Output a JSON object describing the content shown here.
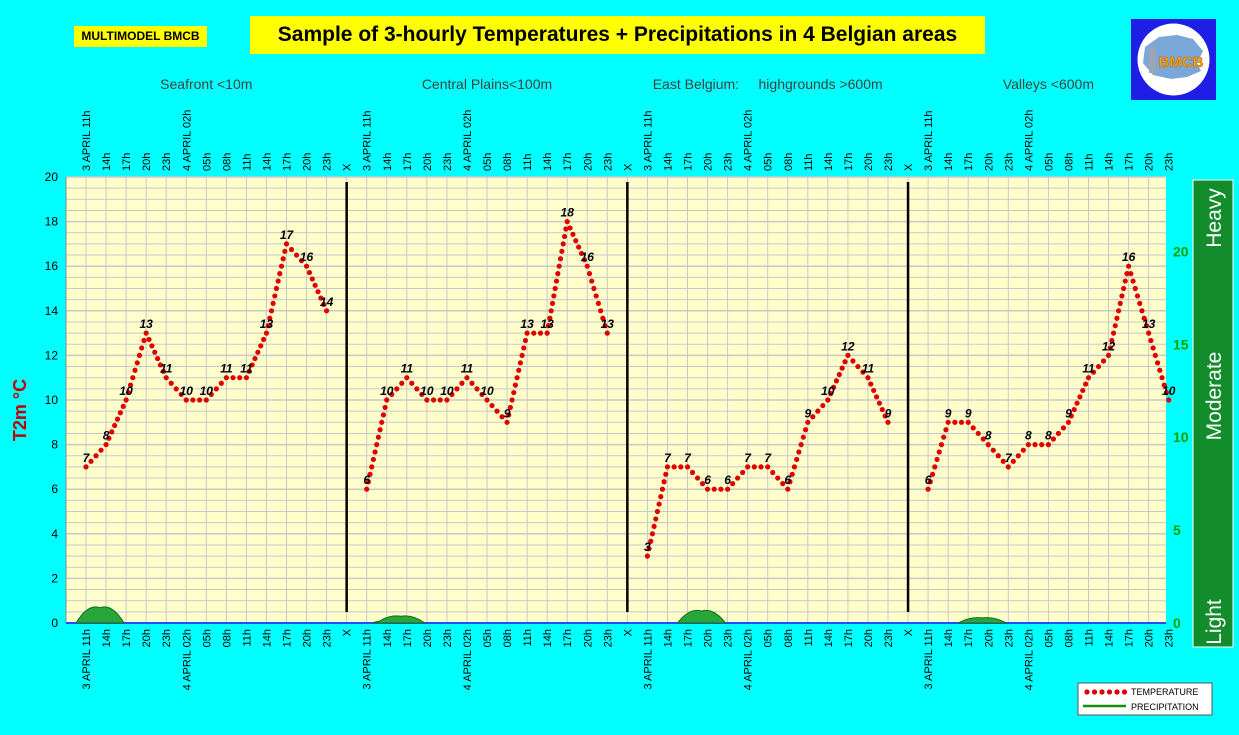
{
  "header": {
    "brand": "MULTIMODEL BMCB",
    "title": "Sample of 3-hourly Temperatures + Precipitations in 4 Belgian areas",
    "logo_text": "BMCB"
  },
  "colors": {
    "background": "#00FFFF",
    "plot_area": "#FFFFCC",
    "temperature": "#E00000",
    "precipitation": "#109010",
    "precip_band": "#138D2C",
    "title_box": "#FFFF00"
  },
  "chart_data": {
    "type": "line",
    "ylabel": "T2m °C",
    "ylim": [
      0,
      20
    ],
    "y_ticks": [
      "0",
      "2",
      "4",
      "6",
      "8",
      "10",
      "12",
      "14",
      "16",
      "18",
      "20"
    ],
    "y2lim": [
      0,
      24
    ],
    "y2_ticks": [
      "0",
      "5",
      "10",
      "15",
      "20"
    ],
    "precip_bands": [
      "Light",
      "Moderate",
      "Heavy"
    ],
    "areas": [
      "Seafront <10m",
      "Central Plains<100m",
      "East Belgium:     highgrounds >600m",
      "Valleys <600m"
    ],
    "x_labels": [
      "3 APRIL 11h",
      "14h",
      "17h",
      "20h",
      "23h",
      "4 APRIL 02h",
      "05h",
      "08h",
      "11h",
      "14h",
      "17h",
      "20h",
      "23h"
    ],
    "separator_label": "X",
    "series": [
      {
        "name": "TEMPERATURE",
        "values": [
          [
            7,
            8,
            10,
            13,
            11,
            10,
            10,
            11,
            11,
            13,
            17,
            16,
            14
          ],
          [
            6,
            10,
            11,
            10,
            10,
            11,
            10,
            9,
            13,
            13,
            18,
            16,
            13
          ],
          [
            3,
            7,
            7,
            6,
            6,
            7,
            7,
            6,
            9,
            10,
            12,
            11,
            9
          ],
          [
            6,
            9,
            9,
            8,
            7,
            8,
            8,
            9,
            11,
            12,
            16,
            13,
            10
          ]
        ]
      },
      {
        "name": "PRECIPITATION",
        "values": [
          [
            0,
            0.9,
            0,
            0,
            0,
            0,
            0,
            0,
            0,
            0,
            0,
            0,
            0
          ],
          [
            0,
            0.1,
            0.4,
            0,
            0,
            0,
            0,
            0,
            0,
            0,
            0,
            0,
            0
          ],
          [
            0,
            0,
            0,
            0.7,
            0,
            0,
            0,
            0,
            0,
            0,
            0,
            0,
            0
          ],
          [
            0,
            0,
            0,
            0.3,
            0,
            0,
            0,
            0,
            0,
            0,
            0,
            0,
            0
          ]
        ]
      }
    ],
    "legend": [
      "TEMPERATURE",
      "PRECIPITATION"
    ],
    "legend_position": "bottom-right"
  }
}
